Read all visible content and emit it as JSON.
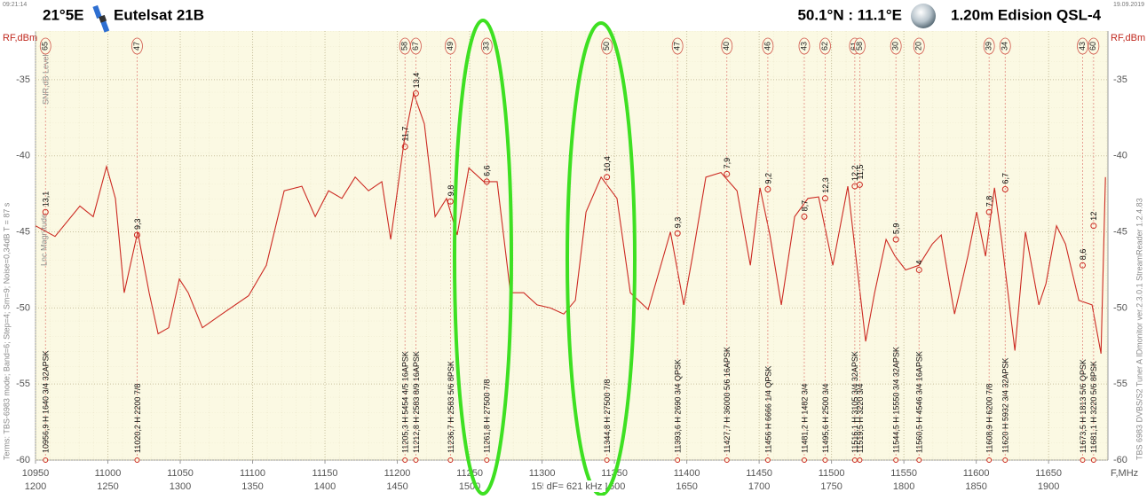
{
  "header": {
    "time": "09:21:14",
    "date": "19.09.2019",
    "orbit": "21°5E",
    "satellite": "Eutelsat 21B",
    "location": "50.1°N : 11.1°E",
    "dish": "1.20m  Edision QSL-4"
  },
  "side_notes": {
    "left": "Terms:  TBS-6983 mode; Band=6; Step=4; Sm=9; Noise=0,34dB   T = 87 s",
    "left_top": "SNR,dB   Level%",
    "left_mid": "Lnc Magnitude",
    "right": "TBS 6983 DVBS/S2 Tuner A   IDmonitor   ver.2.3.0.1   StreamReader 1.2.4.83"
  },
  "chart_data": {
    "type": "line",
    "y_label": "RF,dBm",
    "x_label": "F,MHz",
    "cursor_label": "dF= 621 kHz",
    "color": "#cc2a22",
    "xlim": [
      10950,
      11691
    ],
    "ylim": [
      -60,
      -31.8
    ],
    "x2lim": [
      1200,
      1941
    ],
    "xticks": [
      10950,
      11000,
      11050,
      11100,
      11150,
      11200,
      11250,
      11300,
      11350,
      11400,
      11450,
      11500,
      11550,
      11600,
      11650
    ],
    "x2ticks": [
      1200,
      1250,
      1300,
      1350,
      1400,
      1450,
      1500,
      1550,
      1600,
      1650,
      1700,
      1750,
      1800,
      1850,
      1900
    ],
    "yticks": [
      -60,
      -55,
      -50,
      -45,
      -40,
      -35
    ],
    "grid": true,
    "x": [
      10950,
      10963.5,
      10980.7,
      10989.9,
      10999.1,
      11005.2,
      11011.3,
      11020.6,
      11028.5,
      11034.7,
      11042,
      11049.4,
      11055.5,
      11065.3,
      11078.8,
      11097.2,
      11109.5,
      11121.8,
      11134,
      11143.3,
      11152.5,
      11161.7,
      11170.9,
      11180.1,
      11189.3,
      11195.4,
      11204.6,
      11211.3,
      11218.7,
      11226.1,
      11234,
      11241.4,
      11249.4,
      11259.8,
      11269,
      11278.2,
      11287.4,
      11296.6,
      11305.8,
      11315,
      11323,
      11330.4,
      11340.8,
      11351.8,
      11361,
      11373.3,
      11388.7,
      11397.9,
      11404,
      11413.2,
      11423.6,
      11434.7,
      11443.9,
      11450.6,
      11457.4,
      11465.3,
      11474.5,
      11483.7,
      11491.1,
      11500.9,
      11511.3,
      11517.5,
      11523.6,
      11529.8,
      11537.7,
      11543.9,
      11551.2,
      11560.4,
      11569.6,
      11575.8,
      11585,
      11594.2,
      11600.3,
      11606.4,
      11612.6,
      11617.5,
      11626.7,
      11634,
      11643.3,
      11648.2,
      11655.5,
      11661.7,
      11670.9,
      11680,
      11686.2,
      11689.3
    ],
    "values": [
      -44.6,
      -45.3,
      -43.3,
      -44,
      -40.7,
      -42.8,
      -49,
      -45,
      -49,
      -51.7,
      -51.3,
      -48.1,
      -49,
      -51.3,
      -50.4,
      -49.2,
      -47.2,
      -42.3,
      -42,
      -44,
      -42.3,
      -42.8,
      -41.4,
      -42.3,
      -41.7,
      -45.5,
      -39.1,
      -35.9,
      -37.9,
      -44,
      -42.8,
      -45.2,
      -40.8,
      -41.7,
      -41.7,
      -49,
      -49,
      -49.8,
      -50,
      -50.4,
      -49.5,
      -43.7,
      -41.4,
      -42.8,
      -49,
      -50.1,
      -45,
      -49.8,
      -46.6,
      -41.4,
      -41.1,
      -42.3,
      -47.2,
      -42.1,
      -45.2,
      -49.8,
      -44,
      -42.8,
      -42.7,
      -47.2,
      -42,
      -47.2,
      -52.2,
      -49,
      -45.5,
      -46.6,
      -47.5,
      -47.2,
      -45.8,
      -45.2,
      -50.4,
      -46.6,
      -43.7,
      -46.6,
      -42.1,
      -45.5,
      -52.8,
      -45,
      -49.8,
      -48.4,
      -44.6,
      -45.8,
      -49.5,
      -49.8,
      -53,
      -41.4
    ],
    "markers": [
      {
        "freq": 10956.9,
        "level": -43.7,
        "index": "65",
        "snr": "13,1",
        "info": "10956,9  H  1640 3/4 32APSK"
      },
      {
        "freq": 11020.2,
        "level": -45.2,
        "index": "47",
        "snr": "9,3",
        "info": "11020,2  H  2200 7/8"
      },
      {
        "freq": 11205.3,
        "level": -39.4,
        "index": "58",
        "snr": "11,7",
        "info": "11205,3  H  5454 4/5 16APSK"
      },
      {
        "freq": 11212.8,
        "level": -35.9,
        "index": "67",
        "snr": "13,4",
        "info": "11212,8  H  2583 8/9 16APSK"
      },
      {
        "freq": 11236.7,
        "level": -43,
        "index": "49",
        "snr": "9,8",
        "info": "11236,7  H  2583 5/6  8PSK"
      },
      {
        "freq": 11261.8,
        "level": -41.7,
        "index": "33",
        "snr": "6,6",
        "info": "11261,8  H  27500 7/8"
      },
      {
        "freq": 11344.8,
        "level": -41.4,
        "index": "50",
        "snr": "10,4",
        "info": "11344,8  H  27500 7/8"
      },
      {
        "freq": 11393.6,
        "level": -45.1,
        "index": "47",
        "snr": "9,3",
        "info": "11393,6  H  2690 3/4  QPSK"
      },
      {
        "freq": 11427.7,
        "level": -41.2,
        "index": "40",
        "snr": "7,9",
        "info": "11427,7  H  36000 5/6 16APSK"
      },
      {
        "freq": 11456,
        "level": -42.2,
        "index": "46",
        "snr": "9,2",
        "info": "11456  H  6666 1/4  QPSK"
      },
      {
        "freq": 11481.2,
        "level": -44,
        "index": "43",
        "snr": "8,7",
        "info": "11481,2  H  1482 3/4"
      },
      {
        "freq": 11495.6,
        "level": -42.8,
        "index": "62",
        "snr": "12,3",
        "info": "11495,6  H  2500 3/4"
      },
      {
        "freq": 11516.1,
        "level": -42,
        "index": "61",
        "snr": "12,2",
        "info": "11516,1  H  3105 3/4 32APSK"
      },
      {
        "freq": 11519.5,
        "level": -41.9,
        "index": "58",
        "snr": "11,5",
        "info": "11519,5  H  3220 3/4"
      },
      {
        "freq": 11544.5,
        "level": -45.5,
        "index": "30",
        "snr": "5,9",
        "info": "11544,5  H  15550 3/4 32APSK"
      },
      {
        "freq": 11560.5,
        "level": -47.5,
        "index": "20",
        "snr": "4",
        "info": "11560,5  H  4546 3/4 16APSK"
      },
      {
        "freq": 11608.9,
        "level": -43.7,
        "index": "39",
        "snr": "7,8",
        "info": "11608,9  H  6200 7/8"
      },
      {
        "freq": 11620,
        "level": -42.2,
        "index": "34",
        "snr": "6,7",
        "info": "11620  H  5932 3/4 32APSK"
      },
      {
        "freq": 11673.5,
        "level": -47.2,
        "index": "43",
        "snr": "8,6",
        "info": "11673,5  H  1813 5/6  QPSK"
      },
      {
        "freq": 11681.1,
        "level": -44.6,
        "index": "60",
        "snr": "12",
        "info": "11681,1  H  3220 5/6  8PSK"
      }
    ]
  }
}
